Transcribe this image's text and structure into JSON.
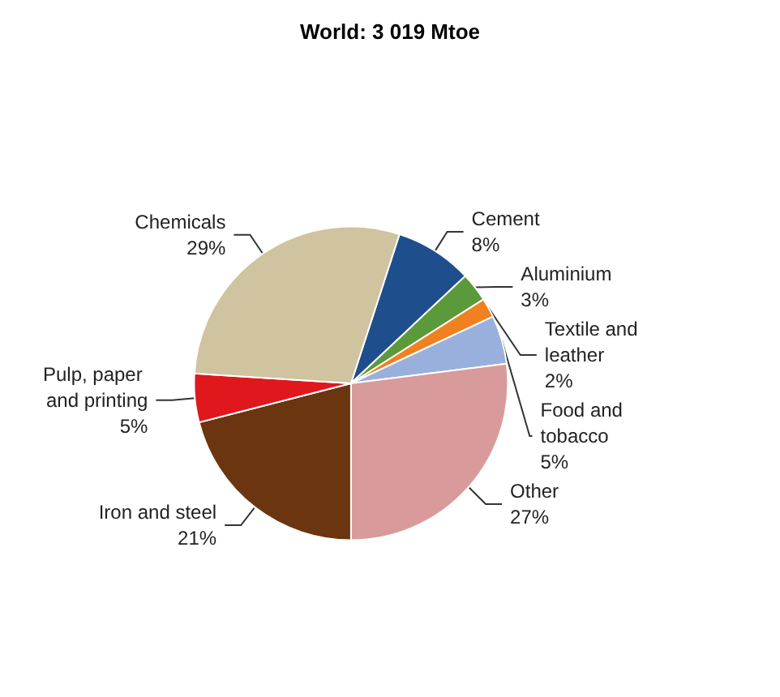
{
  "chart_data": {
    "type": "pie",
    "title": "World: 3 019 Mtoe",
    "categories": [
      "Cement",
      "Aluminium",
      "Textile and leather",
      "Food and tobacco",
      "Other",
      "Iron and steel",
      "Pulp, paper and printing",
      "Chemicals"
    ],
    "values": [
      8,
      3,
      2,
      5,
      27,
      21,
      5,
      29
    ],
    "colors": [
      "#1f4e8c",
      "#5a9a3a",
      "#f08020",
      "#9ab0dc",
      "#d89a9a",
      "#6b3510",
      "#e0181e",
      "#cfc3a0"
    ],
    "value_labels": [
      "8%",
      "3%",
      "2%",
      "5%",
      "27%",
      "21%",
      "5%",
      "29%"
    ]
  }
}
